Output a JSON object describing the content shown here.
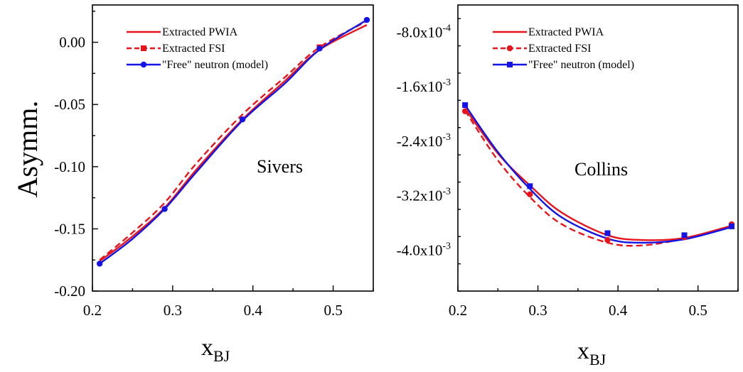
{
  "chart_data": [
    {
      "type": "line",
      "annotation": "Sivers",
      "ylabel": "Asymm.",
      "xlabel_main": "x",
      "xlabel_sub": "BJ",
      "xlim": [
        0.2,
        0.55
      ],
      "ylim": [
        -0.2,
        0.03
      ],
      "xticks": [
        0.2,
        0.3,
        0.4,
        0.5
      ],
      "xtick_labels": [
        "0.2",
        "0.3",
        "0.4",
        "0.5"
      ],
      "yticks": [
        -0.2,
        -0.15,
        -0.1,
        -0.05,
        0.0
      ],
      "ytick_labels": [
        "-0.20",
        "-0.15",
        "-0.10",
        "-0.05",
        "0.00"
      ],
      "legend_position": "top-left",
      "series": [
        {
          "name": "Extracted PWIA",
          "color": "#e8141c",
          "style": "solid",
          "marker": "none",
          "x": [
            0.209,
            0.25,
            0.29,
            0.33,
            0.387,
            0.44,
            0.483,
            0.542
          ],
          "y": [
            -0.176,
            -0.156,
            -0.133,
            -0.102,
            -0.062,
            -0.031,
            -0.006,
            0.014
          ]
        },
        {
          "name": "Extracted FSI",
          "color": "#e8141c",
          "style": "dashed",
          "marker": "square",
          "x": [
            0.209,
            0.25,
            0.29,
            0.33,
            0.387,
            0.44,
            0.483,
            0.542
          ],
          "y": [
            -0.175,
            -0.153,
            -0.129,
            -0.097,
            -0.058,
            -0.028,
            -0.004,
            0.017
          ]
        },
        {
          "name": "\"Free\" neutron (model)",
          "color": "#1414e6",
          "style": "solid",
          "marker": "circle",
          "x": [
            0.209,
            0.25,
            0.29,
            0.33,
            0.387,
            0.44,
            0.483,
            0.542
          ],
          "y": [
            -0.178,
            -0.158,
            -0.134,
            -0.104,
            -0.063,
            -0.033,
            -0.006,
            0.018
          ]
        }
      ],
      "markers": [
        {
          "series": 1,
          "x": [
            0.483
          ],
          "y": [
            -0.004
          ]
        },
        {
          "series": 2,
          "x": [
            0.209,
            0.29,
            0.387,
            0.483,
            0.542
          ],
          "y": [
            -0.178,
            -0.134,
            -0.062,
            -0.005,
            0.018
          ]
        }
      ]
    },
    {
      "type": "line",
      "annotation": "Collins",
      "ylabel": "",
      "xlabel_main": "x",
      "xlabel_sub": "BJ",
      "xlim": [
        0.2,
        0.55
      ],
      "ylim": [
        -0.0046,
        -0.0004
      ],
      "xticks": [
        0.2,
        0.3,
        0.4,
        0.5
      ],
      "xtick_labels": [
        "0.2",
        "0.3",
        "0.4",
        "0.5"
      ],
      "yticks": [
        -0.004,
        -0.0032,
        -0.0024,
        -0.0016,
        -0.0008
      ],
      "ytick_labels": [
        "-4.0x10",
        "-3.2x10",
        "-2.4x10",
        "-1.6x10",
        "-8.0x10"
      ],
      "ytick_exponents": [
        "-3",
        "-3",
        "-3",
        "-3",
        "-4"
      ],
      "legend_position": "top-left",
      "series": [
        {
          "name": "Extracted PWIA",
          "color": "#e8141c",
          "style": "solid",
          "marker": "none",
          "x": [
            0.209,
            0.25,
            0.29,
            0.33,
            0.387,
            0.43,
            0.483,
            0.542
          ],
          "y": [
            -0.00192,
            -0.00258,
            -0.00305,
            -0.00345,
            -0.00378,
            -0.00385,
            -0.00382,
            -0.00364
          ]
        },
        {
          "name": "Extracted FSI",
          "color": "#e8141c",
          "style": "dashed",
          "marker": "circle",
          "x": [
            0.209,
            0.25,
            0.29,
            0.33,
            0.387,
            0.43,
            0.483,
            0.542
          ],
          "y": [
            -0.00195,
            -0.00268,
            -0.00322,
            -0.00362,
            -0.00389,
            -0.00393,
            -0.00383,
            -0.00365
          ]
        },
        {
          "name": "\"Free\" neutron (model)",
          "color": "#1414e6",
          "style": "solid",
          "marker": "square",
          "x": [
            0.209,
            0.25,
            0.29,
            0.33,
            0.387,
            0.43,
            0.483,
            0.542
          ],
          "y": [
            -0.00187,
            -0.00256,
            -0.0031,
            -0.00352,
            -0.00383,
            -0.00389,
            -0.00384,
            -0.00366
          ]
        }
      ],
      "markers": [
        {
          "series": 1,
          "x": [
            0.209,
            0.29,
            0.387,
            0.483,
            0.542
          ],
          "y": [
            -0.00196,
            -0.00318,
            -0.00385,
            -0.00381,
            -0.00362
          ]
        },
        {
          "series": 2,
          "x": [
            0.209,
            0.29,
            0.387,
            0.483,
            0.542
          ],
          "y": [
            -0.00187,
            -0.00306,
            -0.00375,
            -0.00378,
            -0.00365
          ]
        }
      ]
    }
  ]
}
